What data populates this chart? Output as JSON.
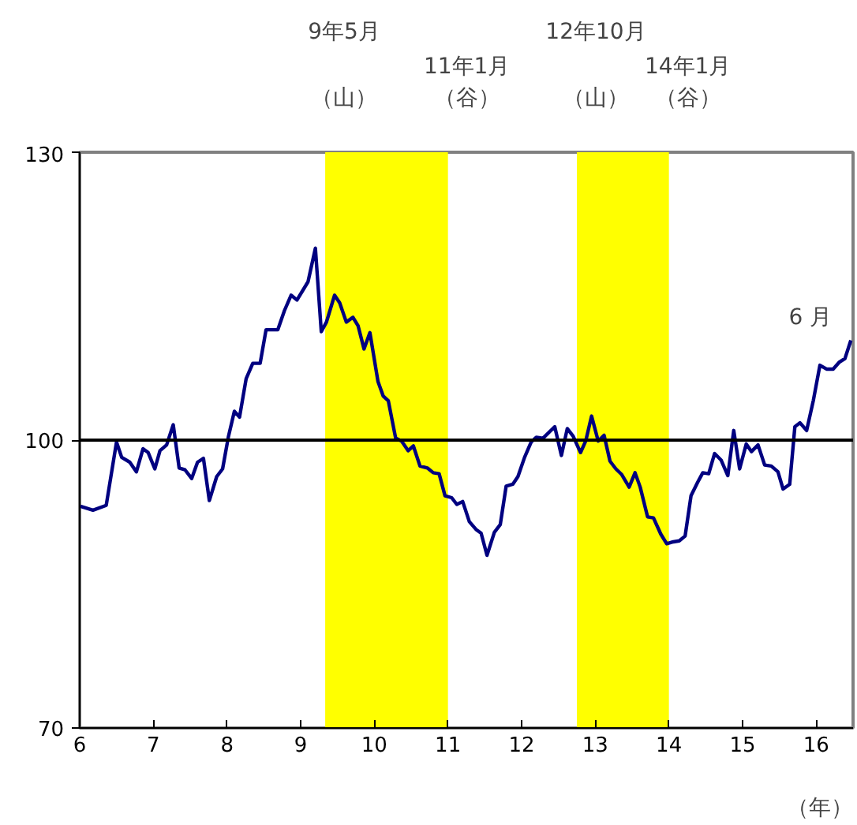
{
  "chart_data": {
    "type": "line",
    "xlabel": "（年）",
    "x": [
      6.01,
      6.18,
      6.36,
      6.5,
      6.57,
      6.68,
      6.77,
      6.86,
      6.93,
      7.02,
      7.09,
      7.18,
      7.27,
      7.35,
      7.43,
      7.52,
      7.6,
      7.68,
      7.76,
      7.86,
      7.94,
      8.02,
      8.1,
      8.17,
      8.26,
      8.35,
      8.45,
      8.53,
      8.69,
      8.78,
      8.87,
      8.95,
      9.1,
      9.2,
      9.28,
      9.35,
      9.46,
      9.53,
      9.62,
      9.71,
      9.78,
      9.86,
      9.94,
      10.05,
      10.12,
      10.19,
      10.29,
      10.37,
      10.46,
      10.53,
      10.62,
      10.72,
      10.8,
      10.88,
      10.96,
      11.05,
      11.12,
      11.2,
      11.29,
      11.38,
      11.45,
      11.53,
      11.63,
      11.71,
      11.79,
      11.88,
      11.95,
      12.04,
      12.13,
      12.2,
      12.29,
      12.45,
      12.54,
      12.62,
      12.7,
      12.8,
      12.87,
      12.95,
      13.04,
      13.12,
      13.2,
      13.28,
      13.36,
      13.46,
      13.54,
      13.61,
      13.71,
      13.79,
      13.89,
      13.97,
      14.06,
      14.14,
      14.22,
      14.3,
      14.39,
      14.46,
      14.54,
      14.62,
      14.71,
      14.8,
      14.88,
      14.96,
      15.05,
      15.12,
      15.21,
      15.3,
      15.39,
      15.48,
      15.55,
      15.64,
      15.71,
      15.78,
      15.87,
      15.96,
      16.05,
      16.14,
      16.23,
      16.31,
      16.39,
      16.47
    ],
    "series": [
      {
        "color": "#000080",
        "values": [
          93.1,
          92.7,
          93.2,
          99.8,
          98.2,
          97.7,
          96.7,
          99.1,
          98.7,
          97.0,
          98.9,
          99.5,
          101.6,
          97.1,
          96.9,
          96.0,
          97.7,
          98.1,
          93.7,
          96.2,
          97.0,
          100.4,
          103.0,
          102.4,
          106.4,
          108.0,
          108.0,
          111.5,
          111.5,
          113.5,
          115.1,
          114.6,
          116.5,
          120.0,
          111.3,
          112.3,
          115.1,
          114.3,
          112.3,
          112.8,
          111.9,
          109.5,
          111.2,
          106.1,
          104.6,
          104.1,
          100.2,
          99.9,
          98.9,
          99.4,
          97.3,
          97.1,
          96.6,
          96.5,
          94.2,
          94.0,
          93.3,
          93.6,
          91.5,
          90.7,
          90.3,
          88.0,
          90.4,
          91.2,
          95.2,
          95.4,
          96.2,
          98.2,
          99.8,
          100.3,
          100.2,
          101.4,
          98.4,
          101.2,
          100.4,
          98.7,
          99.9,
          102.5,
          99.9,
          100.5,
          97.8,
          97.0,
          96.4,
          95.1,
          96.6,
          95.1,
          92.0,
          91.9,
          90.2,
          89.2,
          89.4,
          89.5,
          90.0,
          94.2,
          95.6,
          96.6,
          96.5,
          98.6,
          97.9,
          96.3,
          101.0,
          97.0,
          99.6,
          98.8,
          99.5,
          97.4,
          97.3,
          96.7,
          94.9,
          95.4,
          101.4,
          101.8,
          101.0,
          104.1,
          107.8,
          107.4,
          107.4,
          108.1,
          108.5,
          110.4
        ]
      }
    ],
    "xlim": [
      6,
      16.5
    ],
    "xticks": [
      6,
      7,
      8,
      9,
      10,
      11,
      12,
      13,
      14,
      15,
      16
    ],
    "ylim": [
      70,
      130
    ],
    "yticks": [
      70,
      100,
      130
    ],
    "ref_lines": [
      {
        "axis": "y",
        "value": 100,
        "color": "#000000"
      }
    ],
    "bands": [
      {
        "axis": "x",
        "from": 9.333,
        "to": 11.0,
        "color": "#ffff00"
      },
      {
        "axis": "x",
        "from": 12.75,
        "to": 14.0,
        "color": "#ffff00"
      }
    ],
    "annotations": [
      "9年5月",
      "（山）",
      "11年1月",
      "（谷）",
      "12年10月",
      "（山）",
      "14年1月",
      "（谷）",
      {
        "text": "6 月",
        "x": 16.47,
        "y": 110.4
      }
    ],
    "grid": false,
    "marker": "none",
    "line_style": "solid"
  }
}
